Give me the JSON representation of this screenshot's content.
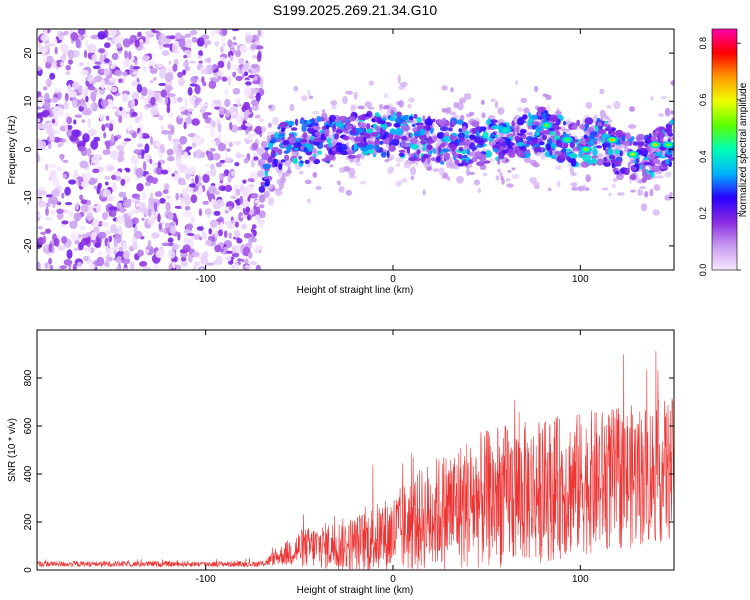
{
  "title": "S199.2025.269.21.34.G10",
  "chart_data": [
    {
      "type": "heatmap",
      "xlabel": "Height of straight line (km)",
      "ylabel": "Frequency (Hz)",
      "xlim": [
        -190,
        150
      ],
      "ylim": [
        -25,
        25
      ],
      "xticks": [
        -100,
        0,
        100
      ],
      "yticks": [
        -20,
        -10,
        0,
        10,
        20
      ],
      "xtick_labels": [
        "-100",
        "0",
        "100"
      ],
      "ytick_labels": [
        "-20",
        "-10",
        "0",
        "10",
        "20"
      ],
      "colorbar": {
        "label": "Normalized spectral amplitude",
        "range": [
          0.0,
          0.85
        ],
        "ticks": [
          0.0,
          0.2,
          0.4,
          0.6,
          0.8
        ],
        "tick_labels": [
          "0.0",
          "0.2",
          "0.4",
          "0.6",
          "0.8"
        ],
        "colors": [
          "#f6e9ff",
          "#c79af0",
          "#8a2be2",
          "#2a00ff",
          "#00b4ff",
          "#00ffb4",
          "#5aff00",
          "#f0ff00",
          "#ff9a00",
          "#ff0000",
          "#ff00aa"
        ]
      },
      "noise_region_x": [
        -190,
        -70
      ],
      "ridge": [
        {
          "x": -70,
          "y": -4
        },
        {
          "x": -60,
          "y": 1
        },
        {
          "x": -40,
          "y": 2
        },
        {
          "x": -20,
          "y": 3
        },
        {
          "x": 0,
          "y": 3
        },
        {
          "x": 20,
          "y": 2
        },
        {
          "x": 40,
          "y": 1
        },
        {
          "x": 60,
          "y": 2
        },
        {
          "x": 80,
          "y": 4
        },
        {
          "x": 90,
          "y": 2
        },
        {
          "x": 100,
          "y": 1
        },
        {
          "x": 110,
          "y": 2
        },
        {
          "x": 120,
          "y": -1
        },
        {
          "x": 135,
          "y": -2
        },
        {
          "x": 150,
          "y": 2
        }
      ],
      "hotspots": [
        {
          "x": 82,
          "y": 5,
          "v": 0.6
        },
        {
          "x": 93,
          "y": 2,
          "v": 0.55
        },
        {
          "x": 103,
          "y": 0,
          "v": 0.65
        },
        {
          "x": 117,
          "y": 2,
          "v": 0.8
        },
        {
          "x": 128,
          "y": -1,
          "v": 0.7
        },
        {
          "x": 140,
          "y": 1,
          "v": 0.75
        },
        {
          "x": 147,
          "y": 1,
          "v": 0.6
        },
        {
          "x": 60,
          "y": 4,
          "v": 0.45
        }
      ]
    },
    {
      "type": "line",
      "xlabel": "Height of straight line (km)",
      "ylabel": "SNR (10 * v/v)",
      "xlim": [
        -190,
        150
      ],
      "ylim": [
        0,
        1000
      ],
      "xticks": [
        -100,
        0,
        100
      ],
      "yticks": [
        0,
        200,
        400,
        600,
        800
      ],
      "xtick_labels": [
        "-100",
        "0",
        "100"
      ],
      "ytick_labels": [
        "0",
        "200",
        "400",
        "600",
        "800"
      ],
      "series_color": "#ee3333",
      "envelope": [
        {
          "x": -190,
          "mean": 25,
          "spread": 12
        },
        {
          "x": -70,
          "mean": 25,
          "spread": 12
        },
        {
          "x": -60,
          "mean": 60,
          "spread": 40
        },
        {
          "x": -50,
          "mean": 90,
          "spread": 80
        },
        {
          "x": -20,
          "mean": 110,
          "spread": 120
        },
        {
          "x": 0,
          "mean": 150,
          "spread": 170
        },
        {
          "x": 20,
          "mean": 230,
          "spread": 230
        },
        {
          "x": 40,
          "mean": 280,
          "spread": 280
        },
        {
          "x": 60,
          "mean": 310,
          "spread": 300
        },
        {
          "x": 80,
          "mean": 330,
          "spread": 300
        },
        {
          "x": 100,
          "mean": 360,
          "spread": 300
        },
        {
          "x": 120,
          "mean": 380,
          "spread": 300
        },
        {
          "x": 150,
          "mean": 420,
          "spread": 300
        }
      ]
    }
  ]
}
